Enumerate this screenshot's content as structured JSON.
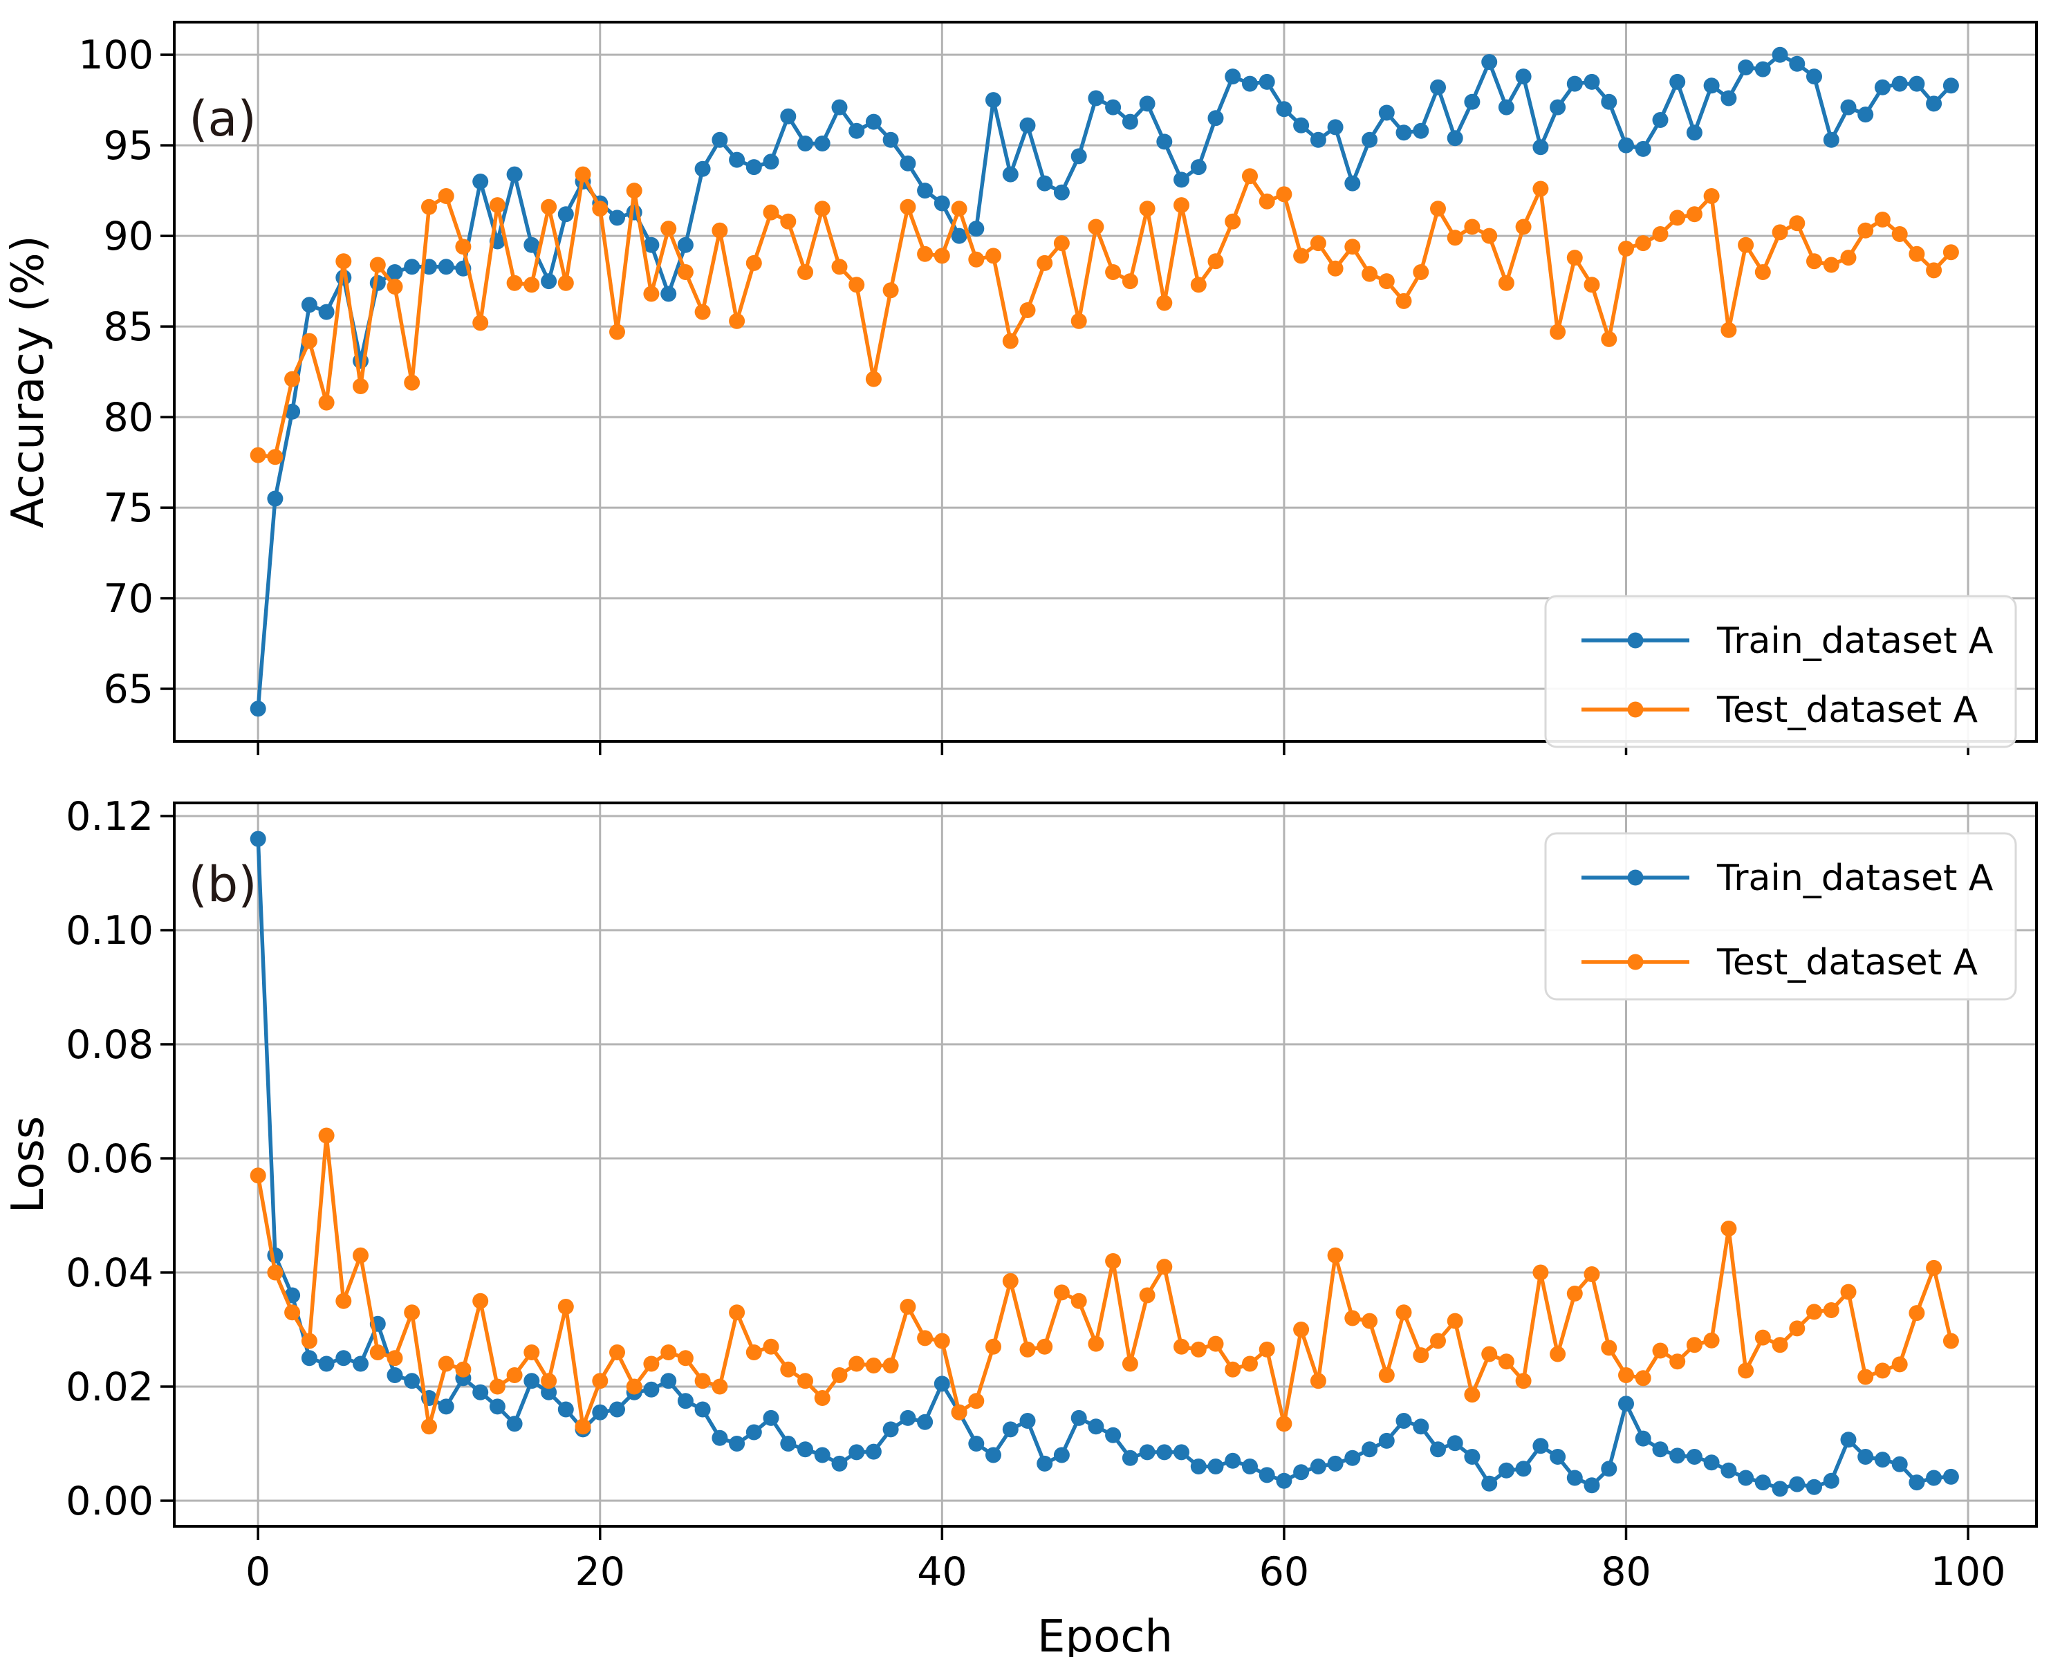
{
  "figure": {
    "xlabel": "Epoch",
    "xticks": [
      0,
      20,
      40,
      60,
      80,
      100
    ],
    "xtick_labels": [
      "0",
      "20",
      "40",
      "60",
      "80",
      "100"
    ],
    "xlim": [
      -4.9,
      104.0
    ],
    "grid": true,
    "colors": {
      "train": "#1f77b4",
      "test": "#ff7f0e",
      "gridline": "#b3b3b3",
      "spine": "#000000",
      "legend_border": "#d9d9d9",
      "background": "#ffffff"
    },
    "legend": {
      "entries": [
        {
          "label": "Train_dataset A",
          "color": "#1f77b4"
        },
        {
          "label": "Test_dataset A",
          "color": "#ff7f0e"
        }
      ]
    }
  },
  "chart_data": [
    {
      "type": "line",
      "panel_label": "(a)",
      "title": "",
      "xlabel": "Epoch",
      "ylabel": "Accuracy (%)",
      "x": [
        0,
        1,
        2,
        3,
        4,
        5,
        6,
        7,
        8,
        9,
        10,
        11,
        12,
        13,
        14,
        15,
        16,
        17,
        18,
        19,
        20,
        21,
        22,
        23,
        24,
        25,
        26,
        27,
        28,
        29,
        30,
        31,
        32,
        33,
        34,
        35,
        36,
        37,
        38,
        39,
        40,
        41,
        42,
        43,
        44,
        45,
        46,
        47,
        48,
        49,
        50,
        51,
        52,
        53,
        54,
        55,
        56,
        57,
        58,
        59,
        60,
        61,
        62,
        63,
        64,
        65,
        66,
        67,
        68,
        69,
        70,
        71,
        72,
        73,
        74,
        75,
        76,
        77,
        78,
        79,
        80,
        81,
        82,
        83,
        84,
        85,
        86,
        87,
        88,
        89,
        90,
        91,
        92,
        93,
        94,
        95,
        96,
        97,
        98,
        99
      ],
      "xlim": [
        -4.9,
        104.0
      ],
      "ylim": [
        62.1,
        101.8
      ],
      "yticks": [
        65,
        70,
        75,
        80,
        85,
        90,
        95,
        100
      ],
      "ytick_labels": [
        "65",
        "70",
        "75",
        "80",
        "85",
        "90",
        "95",
        "100"
      ],
      "grid": true,
      "legend_position": "lower right",
      "series": [
        {
          "name": "Train_dataset A",
          "color": "#1f77b4",
          "values": [
            63.9,
            75.5,
            80.3,
            86.2,
            85.8,
            87.7,
            83.1,
            87.4,
            88.0,
            88.3,
            88.3,
            88.3,
            88.2,
            93.0,
            89.7,
            93.4,
            89.5,
            87.5,
            91.2,
            93.0,
            91.8,
            91.0,
            91.3,
            89.5,
            86.8,
            89.5,
            93.7,
            95.3,
            94.2,
            93.8,
            94.1,
            96.6,
            95.1,
            95.1,
            97.1,
            95.8,
            96.3,
            95.3,
            94.0,
            92.5,
            91.8,
            90.0,
            90.4,
            97.5,
            93.4,
            96.1,
            92.9,
            92.4,
            94.4,
            97.6,
            97.1,
            96.3,
            97.3,
            95.2,
            93.1,
            93.8,
            96.5,
            98.8,
            98.4,
            98.5,
            97.0,
            96.1,
            95.3,
            96.0,
            92.9,
            95.3,
            96.8,
            95.7,
            95.8,
            98.2,
            95.4,
            97.4,
            99.6,
            97.1,
            98.8,
            94.9,
            97.1,
            98.4,
            98.5,
            97.4,
            95.0,
            94.8,
            96.4,
            98.5,
            95.7,
            98.3,
            97.6,
            99.3,
            99.2,
            100.0,
            99.5,
            98.8,
            95.3,
            97.1,
            96.7,
            98.2,
            98.4,
            98.4,
            97.3,
            98.3
          ]
        },
        {
          "name": "Test_dataset A",
          "color": "#ff7f0e",
          "values": [
            77.9,
            77.8,
            82.1,
            84.2,
            80.8,
            88.6,
            81.7,
            88.4,
            87.2,
            81.9,
            91.6,
            92.2,
            89.4,
            85.2,
            91.7,
            87.4,
            87.3,
            91.6,
            87.4,
            93.4,
            91.5,
            84.7,
            92.5,
            86.8,
            90.4,
            88.0,
            85.8,
            90.3,
            85.3,
            88.5,
            91.3,
            90.8,
            88.0,
            91.5,
            88.3,
            87.3,
            82.1,
            87.0,
            91.6,
            89.0,
            88.9,
            91.5,
            88.7,
            88.9,
            84.2,
            85.9,
            88.5,
            89.6,
            85.3,
            90.5,
            88.0,
            87.5,
            91.5,
            86.3,
            91.7,
            87.3,
            88.6,
            90.8,
            93.3,
            91.9,
            92.3,
            88.9,
            89.6,
            88.2,
            89.4,
            87.9,
            87.5,
            86.4,
            88.0,
            91.5,
            89.9,
            90.5,
            90.0,
            87.4,
            90.5,
            92.6,
            84.7,
            88.8,
            87.3,
            84.3,
            89.3,
            89.6,
            90.1,
            91.0,
            91.2,
            92.2,
            84.8,
            89.5,
            88.0,
            90.2,
            90.7,
            88.6,
            88.4,
            88.8,
            90.3,
            90.9,
            90.1,
            89.0,
            88.1,
            89.1
          ]
        }
      ]
    },
    {
      "type": "line",
      "panel_label": "(b)",
      "title": "",
      "xlabel": "Epoch",
      "ylabel": "Loss",
      "x": [
        0,
        1,
        2,
        3,
        4,
        5,
        6,
        7,
        8,
        9,
        10,
        11,
        12,
        13,
        14,
        15,
        16,
        17,
        18,
        19,
        20,
        21,
        22,
        23,
        24,
        25,
        26,
        27,
        28,
        29,
        30,
        31,
        32,
        33,
        34,
        35,
        36,
        37,
        38,
        39,
        40,
        41,
        42,
        43,
        44,
        45,
        46,
        47,
        48,
        49,
        50,
        51,
        52,
        53,
        54,
        55,
        56,
        57,
        58,
        59,
        60,
        61,
        62,
        63,
        64,
        65,
        66,
        67,
        68,
        69,
        70,
        71,
        72,
        73,
        74,
        75,
        76,
        77,
        78,
        79,
        80,
        81,
        82,
        83,
        84,
        85,
        86,
        87,
        88,
        89,
        90,
        91,
        92,
        93,
        94,
        95,
        96,
        97,
        98,
        99
      ],
      "xlim": [
        -4.9,
        104.0
      ],
      "ylim": [
        -0.00448,
        0.1223
      ],
      "yticks": [
        0.0,
        0.02,
        0.04,
        0.06,
        0.08,
        0.1,
        0.12
      ],
      "ytick_labels": [
        "0.00",
        "0.02",
        "0.04",
        "0.06",
        "0.08",
        "0.10",
        "0.12"
      ],
      "grid": true,
      "legend_position": "upper right",
      "series": [
        {
          "name": "Train_dataset A",
          "color": "#1f77b4",
          "values": [
            0.116,
            0.043,
            0.036,
            0.025,
            0.024,
            0.025,
            0.024,
            0.031,
            0.022,
            0.021,
            0.018,
            0.0165,
            0.0215,
            0.019,
            0.0165,
            0.0135,
            0.021,
            0.019,
            0.016,
            0.0125,
            0.0155,
            0.016,
            0.019,
            0.0195,
            0.021,
            0.0175,
            0.016,
            0.011,
            0.01,
            0.012,
            0.0145,
            0.01,
            0.009,
            0.008,
            0.0065,
            0.0085,
            0.0086,
            0.0125,
            0.0145,
            0.0138,
            0.0205,
            0.0155,
            0.01,
            0.008,
            0.0125,
            0.014,
            0.0065,
            0.008,
            0.0145,
            0.013,
            0.0115,
            0.0075,
            0.0085,
            0.0085,
            0.0085,
            0.006,
            0.006,
            0.007,
            0.006,
            0.0045,
            0.0035,
            0.005,
            0.006,
            0.0065,
            0.0075,
            0.009,
            0.0105,
            0.014,
            0.013,
            0.009,
            0.0101,
            0.0077,
            0.003,
            0.0053,
            0.0056,
            0.0096,
            0.0077,
            0.004,
            0.0027,
            0.0056,
            0.017,
            0.0109,
            0.009,
            0.0079,
            0.0077,
            0.0067,
            0.0053,
            0.004,
            0.0032,
            0.0021,
            0.0029,
            0.0024,
            0.0035,
            0.0107,
            0.0077,
            0.0072,
            0.0064,
            0.0032,
            0.004,
            0.0042
          ]
        },
        {
          "name": "Test_dataset A",
          "color": "#ff7f0e",
          "values": [
            0.057,
            0.04,
            0.033,
            0.028,
            0.064,
            0.035,
            0.043,
            0.026,
            0.025,
            0.033,
            0.013,
            0.024,
            0.023,
            0.035,
            0.02,
            0.022,
            0.026,
            0.021,
            0.034,
            0.013,
            0.021,
            0.026,
            0.02,
            0.024,
            0.026,
            0.025,
            0.021,
            0.02,
            0.033,
            0.026,
            0.027,
            0.023,
            0.021,
            0.018,
            0.022,
            0.024,
            0.0237,
            0.0237,
            0.034,
            0.0285,
            0.028,
            0.0155,
            0.0175,
            0.027,
            0.0385,
            0.0265,
            0.027,
            0.0365,
            0.035,
            0.0275,
            0.042,
            0.024,
            0.036,
            0.041,
            0.027,
            0.0265,
            0.0275,
            0.023,
            0.024,
            0.0265,
            0.0135,
            0.03,
            0.021,
            0.043,
            0.032,
            0.0315,
            0.022,
            0.033,
            0.0255,
            0.028,
            0.0315,
            0.0186,
            0.0257,
            0.0244,
            0.021,
            0.04,
            0.0257,
            0.0363,
            0.0397,
            0.0268,
            0.022,
            0.0215,
            0.0263,
            0.0244,
            0.0273,
            0.0281,
            0.0477,
            0.0228,
            0.0286,
            0.0273,
            0.0302,
            0.0331,
            0.0334,
            0.0366,
            0.0217,
            0.0228,
            0.0239,
            0.0329,
            0.0408,
            0.028
          ]
        }
      ]
    }
  ]
}
